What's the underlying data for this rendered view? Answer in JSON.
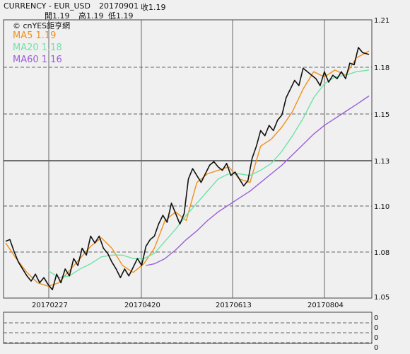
{
  "header": {
    "symbol": "CURRENCY  -  EUR_USD",
    "date": "20170901",
    "close": "收1.19",
    "open": "開1.19",
    "high": "高1.19",
    "low": "低1.19"
  },
  "watermark": "© cnYES鉅亨網",
  "colors": {
    "background": "#f0f0f0",
    "price": "#111111",
    "ma5": "#f0901a",
    "ma20": "#6fe3a6",
    "ma60": "#9b5fd6",
    "grid": "#666666"
  },
  "chart_data": [
    {
      "type": "line",
      "title": "",
      "x_ticks": [
        "20170227",
        "20170420",
        "20170613",
        "20170804"
      ],
      "y_ticks": [
        "1.21",
        "1.18",
        "1.15",
        "1.13",
        "1.10",
        "1.08",
        "1.05"
      ],
      "ylim": [
        1.05,
        1.21
      ],
      "xlim": [
        0,
        171
      ],
      "legend_position": "top-left",
      "grid": true,
      "series": [
        {
          "name": "MA5 1.19",
          "color": "#f0901a",
          "points": [
            [
              0,
              1.081
            ],
            [
              5,
              1.072
            ],
            [
              10,
              1.064
            ],
            [
              15,
              1.058
            ],
            [
              20,
              1.056
            ],
            [
              25,
              1.058
            ],
            [
              30,
              1.065
            ],
            [
              35,
              1.072
            ],
            [
              40,
              1.079
            ],
            [
              45,
              1.084
            ],
            [
              50,
              1.078
            ],
            [
              55,
              1.068
            ],
            [
              60,
              1.064
            ],
            [
              65,
              1.069
            ],
            [
              70,
              1.078
            ],
            [
              75,
              1.094
            ],
            [
              80,
              1.099
            ],
            [
              85,
              1.094
            ],
            [
              90,
              1.116
            ],
            [
              95,
              1.121
            ],
            [
              100,
              1.123
            ],
            [
              105,
              1.125
            ],
            [
              110,
              1.118
            ],
            [
              115,
              1.116
            ],
            [
              120,
              1.137
            ],
            [
              125,
              1.141
            ],
            [
              130,
              1.148
            ],
            [
              135,
              1.157
            ],
            [
              140,
              1.17
            ],
            [
              145,
              1.18
            ],
            [
              150,
              1.177
            ],
            [
              155,
              1.181
            ],
            [
              160,
              1.178
            ],
            [
              165,
              1.188
            ],
            [
              171,
              1.192
            ]
          ]
        },
        {
          "name": "MA20 1.18",
          "color": "#6fe3a6",
          "points": [
            [
              20,
              1.065
            ],
            [
              25,
              1.061
            ],
            [
              30,
              1.062
            ],
            [
              35,
              1.066
            ],
            [
              40,
              1.069
            ],
            [
              45,
              1.073
            ],
            [
              50,
              1.074
            ],
            [
              55,
              1.074
            ],
            [
              60,
              1.072
            ],
            [
              65,
              1.072
            ],
            [
              70,
              1.075
            ],
            [
              75,
              1.082
            ],
            [
              80,
              1.089
            ],
            [
              85,
              1.097
            ],
            [
              90,
              1.104
            ],
            [
              95,
              1.111
            ],
            [
              100,
              1.118
            ],
            [
              105,
              1.121
            ],
            [
              110,
              1.121
            ],
            [
              115,
              1.12
            ],
            [
              120,
              1.123
            ],
            [
              125,
              1.127
            ],
            [
              130,
              1.134
            ],
            [
              135,
              1.143
            ],
            [
              140,
              1.153
            ],
            [
              145,
              1.165
            ],
            [
              150,
              1.173
            ],
            [
              155,
              1.177
            ],
            [
              160,
              1.178
            ],
            [
              165,
              1.18
            ],
            [
              171,
              1.181
            ]
          ]
        },
        {
          "name": "MA60 1.16",
          "color": "#9b5fd6",
          "points": [
            [
              66,
              1.068
            ],
            [
              70,
              1.069
            ],
            [
              75,
              1.072
            ],
            [
              80,
              1.077
            ],
            [
              85,
              1.083
            ],
            [
              90,
              1.088
            ],
            [
              95,
              1.094
            ],
            [
              100,
              1.099
            ],
            [
              105,
              1.103
            ],
            [
              110,
              1.107
            ],
            [
              115,
              1.111
            ],
            [
              120,
              1.116
            ],
            [
              125,
              1.121
            ],
            [
              130,
              1.126
            ],
            [
              135,
              1.132
            ],
            [
              140,
              1.138
            ],
            [
              145,
              1.144
            ],
            [
              150,
              1.149
            ],
            [
              155,
              1.153
            ],
            [
              160,
              1.157
            ],
            [
              165,
              1.161
            ],
            [
              171,
              1.166
            ]
          ]
        },
        {
          "name": "EUR_USD",
          "color": "#111111",
          "points": [
            [
              0,
              1.082
            ],
            [
              2,
              1.083
            ],
            [
              4,
              1.076
            ],
            [
              6,
              1.07
            ],
            [
              8,
              1.066
            ],
            [
              10,
              1.062
            ],
            [
              12,
              1.059
            ],
            [
              14,
              1.063
            ],
            [
              16,
              1.058
            ],
            [
              18,
              1.061
            ],
            [
              20,
              1.057
            ],
            [
              22,
              1.054
            ],
            [
              24,
              1.063
            ],
            [
              26,
              1.058
            ],
            [
              28,
              1.066
            ],
            [
              30,
              1.062
            ],
            [
              32,
              1.072
            ],
            [
              34,
              1.068
            ],
            [
              36,
              1.078
            ],
            [
              38,
              1.074
            ],
            [
              40,
              1.085
            ],
            [
              42,
              1.081
            ],
            [
              44,
              1.085
            ],
            [
              46,
              1.078
            ],
            [
              48,
              1.075
            ],
            [
              50,
              1.07
            ],
            [
              52,
              1.066
            ],
            [
              54,
              1.061
            ],
            [
              56,
              1.066
            ],
            [
              58,
              1.062
            ],
            [
              60,
              1.067
            ],
            [
              62,
              1.072
            ],
            [
              64,
              1.068
            ],
            [
              66,
              1.079
            ],
            [
              68,
              1.083
            ],
            [
              70,
              1.085
            ],
            [
              72,
              1.092
            ],
            [
              74,
              1.097
            ],
            [
              76,
              1.093
            ],
            [
              78,
              1.104
            ],
            [
              80,
              1.098
            ],
            [
              82,
              1.092
            ],
            [
              84,
              1.098
            ],
            [
              86,
              1.118
            ],
            [
              88,
              1.124
            ],
            [
              90,
              1.12
            ],
            [
              92,
              1.116
            ],
            [
              94,
              1.121
            ],
            [
              96,
              1.126
            ],
            [
              98,
              1.128
            ],
            [
              100,
              1.125
            ],
            [
              102,
              1.123
            ],
            [
              104,
              1.127
            ],
            [
              106,
              1.12
            ],
            [
              108,
              1.122
            ],
            [
              110,
              1.118
            ],
            [
              112,
              1.114
            ],
            [
              114,
              1.117
            ],
            [
              116,
              1.13
            ],
            [
              118,
              1.137
            ],
            [
              120,
              1.146
            ],
            [
              122,
              1.143
            ],
            [
              124,
              1.149
            ],
            [
              126,
              1.146
            ],
            [
              128,
              1.152
            ],
            [
              130,
              1.155
            ],
            [
              132,
              1.165
            ],
            [
              134,
              1.17
            ],
            [
              136,
              1.175
            ],
            [
              138,
              1.172
            ],
            [
              140,
              1.182
            ],
            [
              142,
              1.18
            ],
            [
              144,
              1.178
            ],
            [
              146,
              1.176
            ],
            [
              148,
              1.172
            ],
            [
              150,
              1.18
            ],
            [
              152,
              1.174
            ],
            [
              154,
              1.178
            ],
            [
              156,
              1.176
            ],
            [
              158,
              1.18
            ],
            [
              160,
              1.176
            ],
            [
              162,
              1.185
            ],
            [
              164,
              1.184
            ],
            [
              166,
              1.194
            ],
            [
              168,
              1.191
            ],
            [
              171,
              1.19
            ]
          ]
        }
      ]
    },
    {
      "type": "line",
      "y_ticks": [
        "0",
        "0",
        "0",
        "0"
      ],
      "series": []
    }
  ]
}
